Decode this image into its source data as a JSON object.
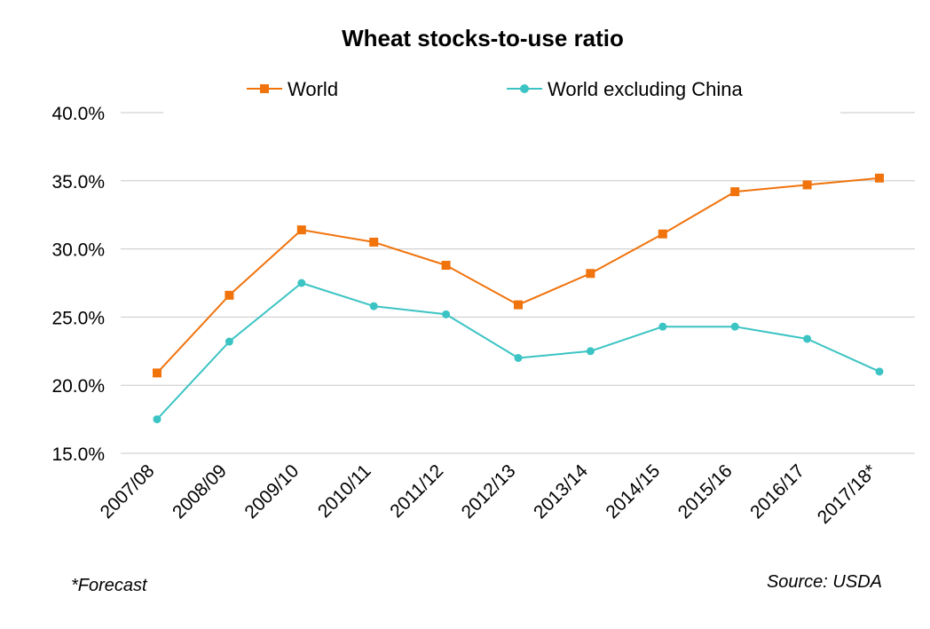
{
  "chart_data": {
    "type": "line",
    "title": "Wheat stocks-to-use ratio",
    "categories": [
      "2007/08",
      "2008/09",
      "2009/10",
      "2010/11",
      "2011/12",
      "2012/13",
      "2013/14",
      "2014/15",
      "2015/16",
      "2016/17",
      "2017/18*"
    ],
    "series": [
      {
        "name": "World",
        "color": "#f0730c",
        "marker": "square",
        "values": [
          20.9,
          26.6,
          31.4,
          30.5,
          28.8,
          25.9,
          28.2,
          31.1,
          34.2,
          34.7,
          35.2
        ]
      },
      {
        "name": "World excluding China",
        "color": "#3cc3c3",
        "marker": "circle",
        "values": [
          17.5,
          23.2,
          27.5,
          25.8,
          25.2,
          22.0,
          22.5,
          24.3,
          24.3,
          23.4,
          21.0
        ]
      }
    ],
    "yticks": [
      "15.0%",
      "20.0%",
      "25.0%",
      "30.0%",
      "35.0%",
      "40.0%"
    ],
    "ylim": [
      15,
      40
    ],
    "xlabel": "",
    "ylabel": "",
    "grid": true,
    "legend": "top"
  },
  "notes": {
    "footnote": "*Forecast",
    "source": "Source:  USDA"
  }
}
